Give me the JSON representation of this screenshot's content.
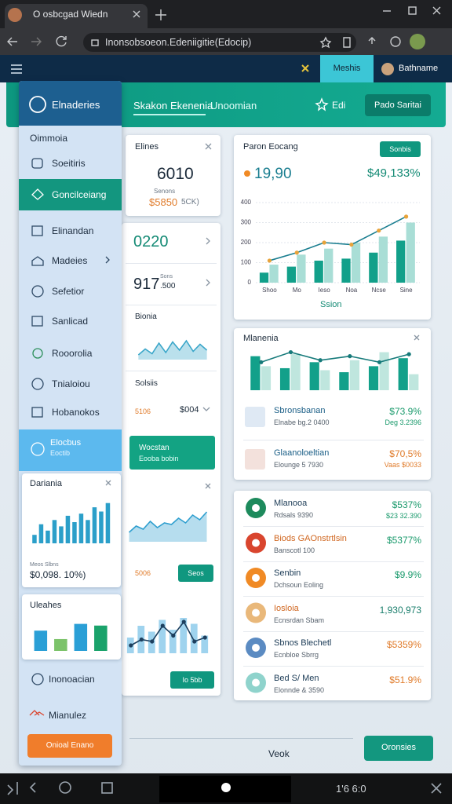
{
  "browser": {
    "tab_title": "O osbcgad Wiedn",
    "url": "Inonsobsoeon.Edeniigitie(Edocip)"
  },
  "header": {
    "active_tab": "Meshis",
    "user": "Bathname"
  },
  "nav": {
    "links": [
      "Skakon Ekenenia",
      "Unoomian"
    ],
    "edit": "Edi",
    "button": "Pado Saritai"
  },
  "sidebar": {
    "title": "Elnaderies",
    "section": "Oimmoia",
    "items": [
      "Soeitiris",
      "Goncilceiang",
      "Elinandan",
      "Madeies",
      "Sefetior",
      "Sanlicad",
      "Rooorolia",
      "Tnialoiou",
      "Hobanokos"
    ],
    "highlight": {
      "title": "Elocbus",
      "subtitle": "Eoctib"
    },
    "card": {
      "title": "Dariania",
      "caption": "Meos Slbns",
      "value": "$0,098. 10%)"
    },
    "card2": {
      "title": "Uleahes"
    },
    "footer_items": [
      "Inonoacian",
      "Mianulez"
    ],
    "button": "Onioal Enano"
  },
  "middle": {
    "card": {
      "title": "Elines",
      "value": "6010",
      "caption": "Senons",
      "amount": "$5850",
      "note": "5CK)"
    },
    "stat1": "0220",
    "stat2": {
      "value": "917",
      "unit": ".500",
      "caption": "Sons"
    },
    "chart_title": "Bionia",
    "section": "Solsiis",
    "left_value": "5106",
    "right_value": "$004",
    "promo": {
      "title": "Wocstan",
      "subtitle": "Eooba bobin"
    },
    "value2": "5006",
    "button1": "Seos",
    "button2": "Io 5bb"
  },
  "main_card": {
    "title": "Paron Eocang",
    "button": "Sonbis",
    "value": "19,90",
    "change": "$49,133%",
    "footer": "Ssion"
  },
  "second_card": {
    "title": "Mlanenia",
    "rows": [
      {
        "title": "Sbronsbanan",
        "subtitle": "Elnabe bg.2 0400",
        "value": "$73.9%",
        "note": "Deg 3.2396",
        "value_color": "#1a9a6c"
      },
      {
        "title": "Glaanoloeltian",
        "subtitle": "Elounge 5 7930",
        "value": "$70,5%",
        "note": "Vaas $0033",
        "value_color": "#e07b2a"
      }
    ]
  },
  "list": {
    "rows": [
      {
        "title": "Mlanooa",
        "subtitle": "Rdsals 9390",
        "value": "$537%",
        "note": "$23 32.390",
        "value_color": "#1a9a6c",
        "icon_color": "#1d8a5c"
      },
      {
        "title": "Biods GAOnstrtlsin",
        "subtitle": "Banscotl 100",
        "value": "$5377%",
        "value_color": "#1a9a6c",
        "icon_color": "#d9452e"
      },
      {
        "title": "Senbin",
        "subtitle": "Dchsoun Eoling",
        "value": "$9.9%",
        "value_color": "#1a9a6c",
        "icon_color": "#f08a25"
      },
      {
        "title": "Iosloia",
        "subtitle": "Ecnsrdan Sbam",
        "value": "1,930,973",
        "value_color": "#1a7e6c",
        "icon_color": "#e9b87a"
      },
      {
        "title": "Sbnos Blechetl",
        "subtitle": "Ecnbloe Sbrrg",
        "value": "$5359%",
        "value_color": "#e07b2a",
        "icon_color": "#5b8bc2"
      },
      {
        "title": "Bed S/ Men",
        "subtitle": "Elonnde & 3590",
        "value": "$51.9%",
        "value_color": "#e07b2a",
        "icon_color": "#8fd3cc"
      }
    ]
  },
  "footer": {
    "label": "Veok",
    "button": "Oronsies"
  },
  "system": {
    "status": "1'6 6:0"
  },
  "chart_data": [
    {
      "type": "bar",
      "ylim": [
        0,
        400
      ],
      "yticks": [
        0,
        100,
        200,
        300,
        400
      ],
      "grid": true,
      "categories": [
        "Shoo",
        "Mo",
        "Ieso",
        "Noa",
        "Ncse",
        "Sine"
      ],
      "series": [
        {
          "color": "#12a08a",
          "values": [
            50,
            80,
            110,
            120,
            150,
            210
          ]
        },
        {
          "color": "#a9ded6",
          "values": [
            90,
            140,
            170,
            200,
            230,
            300
          ]
        },
        {
          "kind": "line",
          "color": "#1a7e90",
          "marker_color": "#e8a33a",
          "values": [
            110,
            150,
            200,
            190,
            260,
            330
          ]
        }
      ]
    },
    {
      "type": "bar",
      "ylim": [
        0,
        100
      ],
      "series": [
        {
          "color": "#12a08a",
          "values": [
            85,
            55,
            70,
            45,
            60,
            80
          ]
        },
        {
          "color": "#bfe6de",
          "values": [
            60,
            90,
            50,
            75,
            95,
            40
          ]
        },
        {
          "kind": "line",
          "color": "#167a7a",
          "marker_color": "#167a7a",
          "values": [
            70,
            95,
            75,
            85,
            70,
            90
          ]
        }
      ]
    },
    {
      "type": "bar",
      "ylim": [
        0,
        100
      ],
      "series": [
        {
          "color": "#2b9fc9",
          "values": [
            20,
            45,
            30,
            55,
            40,
            65,
            50,
            70,
            55,
            85,
            75,
            95
          ]
        }
      ]
    },
    {
      "type": "bar",
      "ylim": [
        0,
        100
      ],
      "series": [
        {
          "colors": [
            "#2a9fd6",
            "#7cc36a",
            "#2a9fd6",
            "#1aa36b"
          ],
          "values": [
            60,
            35,
            80,
            75
          ]
        }
      ]
    },
    {
      "type": "area",
      "ylim": [
        0,
        100
      ],
      "series": [
        {
          "color": "#3aa6c9",
          "values": [
            20,
            45,
            25,
            70,
            30,
            75,
            40,
            80,
            35,
            65,
            40
          ]
        }
      ]
    },
    {
      "type": "area",
      "ylim": [
        0,
        100
      ],
      "series": [
        {
          "color": "#2f9fcf",
          "values": [
            30,
            50,
            40,
            65,
            45,
            60,
            55,
            75,
            60,
            85,
            70,
            95
          ]
        }
      ]
    },
    {
      "type": "bar",
      "ylim": [
        0,
        100
      ],
      "series": [
        {
          "color": "#9fd3ee",
          "values": [
            40,
            70,
            55,
            85,
            60,
            90,
            75,
            45
          ]
        },
        {
          "kind": "line",
          "color": "#1d3f5e",
          "marker_color": "#1d3f5e",
          "values": [
            20,
            35,
            30,
            70,
            45,
            80,
            30,
            40
          ]
        }
      ]
    }
  ]
}
